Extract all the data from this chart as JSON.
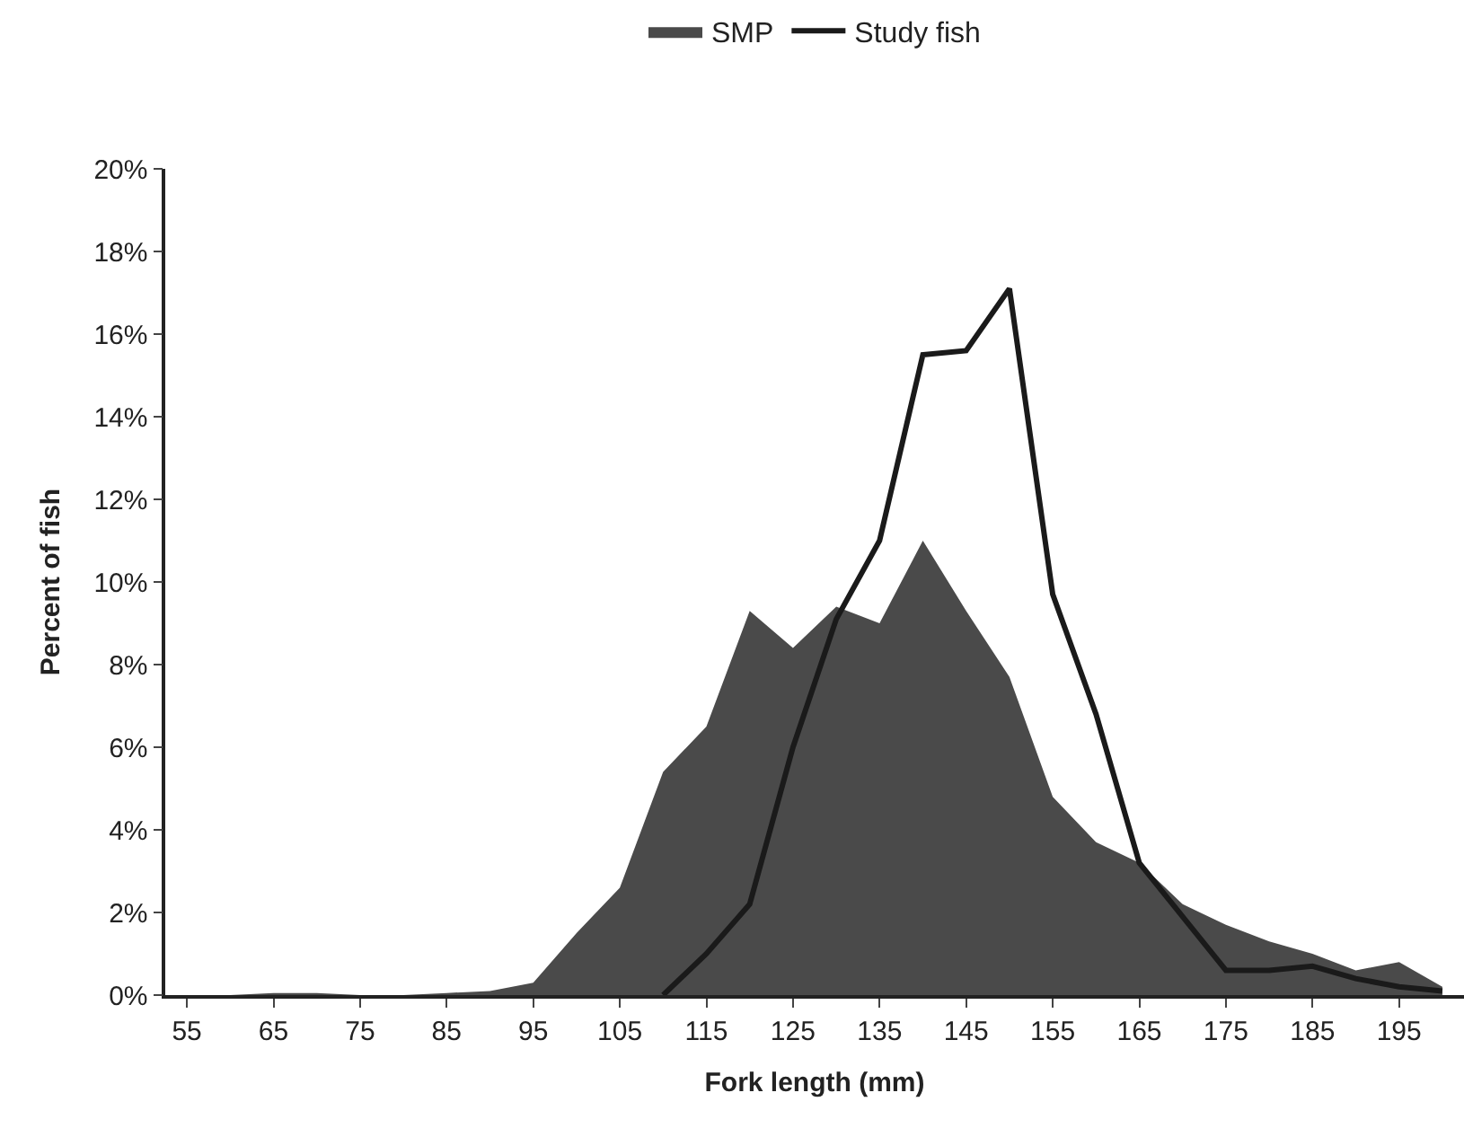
{
  "chart_data": {
    "type": "area",
    "xlabel": "Fork length (mm)",
    "ylabel": "Percent of fish",
    "categories": [
      "55",
      null,
      "65",
      null,
      "75",
      null,
      "85",
      null,
      "95",
      null,
      "105",
      null,
      "115",
      null,
      "125",
      null,
      "135",
      null,
      "145",
      null,
      "155",
      null,
      "165",
      null,
      "175",
      null,
      "185",
      null,
      "195",
      null
    ],
    "series": [
      {
        "name": "SMP",
        "color": "#4a4a4a",
        "values": [
          0,
          0,
          0.05,
          0.05,
          0,
          0,
          0.05,
          0.1,
          0.3,
          1.5,
          2.6,
          5.4,
          6.5,
          9.3,
          8.4,
          9.4,
          9.0,
          11.0,
          9.3,
          7.7,
          4.8,
          3.7,
          3.2,
          2.2,
          1.7,
          1.3,
          1.0,
          0.6,
          0.8,
          0.2
        ]
      },
      {
        "name": "Study fish",
        "type": "line",
        "color": "#1a1a1a",
        "values": [
          null,
          null,
          null,
          null,
          null,
          null,
          null,
          null,
          null,
          null,
          null,
          0,
          1.0,
          2.2,
          6.0,
          9.1,
          11.0,
          15.5,
          15.6,
          17.1,
          9.7,
          6.8,
          3.2,
          1.9,
          0.6,
          0.6,
          0.7,
          0.4,
          0.2,
          0.1
        ]
      }
    ],
    "ylim": [
      0,
      20
    ],
    "yticks": [
      {
        "value": 0,
        "label": "0%"
      },
      {
        "value": 2,
        "label": "2%"
      },
      {
        "value": 4,
        "label": "4%"
      },
      {
        "value": 6,
        "label": "6%"
      },
      {
        "value": 8,
        "label": "8%"
      },
      {
        "value": 10,
        "label": "10%"
      },
      {
        "value": 12,
        "label": "12%"
      },
      {
        "value": 14,
        "label": "14%"
      },
      {
        "value": 16,
        "label": "16%"
      },
      {
        "value": 18,
        "label": "18%"
      },
      {
        "value": 20,
        "label": "20%"
      }
    ],
    "grid": false,
    "legend": "top",
    "marker": "none",
    "line_style": "solid"
  }
}
